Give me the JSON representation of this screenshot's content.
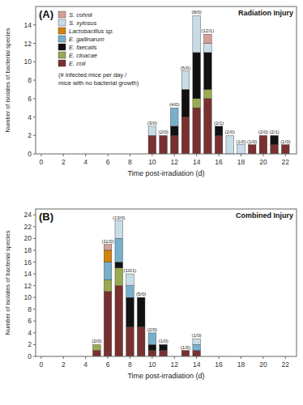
{
  "chart_data": [
    {
      "type": "bar",
      "stacked": true,
      "grid": false,
      "legend": "upper left",
      "panel_label": "(A)",
      "title": "Radiation Injury",
      "x_label": "Time post-irradiation (d)",
      "y_label": "Number of isolates of bacterial species",
      "xlim": [
        -0.5,
        23
      ],
      "xticks": [
        0,
        2,
        4,
        6,
        8,
        10,
        12,
        14,
        16,
        18,
        20,
        22
      ],
      "ylim": [
        0,
        16
      ],
      "yticks": [
        0,
        2,
        4,
        6,
        8,
        10,
        12,
        14
      ],
      "x": [
        10,
        11,
        12,
        13,
        14,
        15,
        16,
        17,
        18,
        19,
        20,
        21,
        22
      ],
      "bar_labels": [
        "(3/0)",
        "(2/0)",
        "(4/0)",
        "(5/0)",
        "(8/0)",
        "(12/1)",
        "(2/1)",
        "(2/0)",
        "(1/0)",
        "(1/0)",
        "(2/0)",
        "(2/1)",
        "(1/0)"
      ],
      "series": [
        {
          "name": "E. coli",
          "color": "#7a3030",
          "values": [
            2,
            2,
            2,
            4,
            5,
            6,
            2,
            0,
            0,
            1,
            2,
            1,
            1
          ]
        },
        {
          "name": "E. cloacae",
          "color": "#9aaa50",
          "values": [
            0,
            0,
            0,
            0,
            1,
            1,
            0,
            0,
            0,
            0,
            0,
            0,
            0
          ]
        },
        {
          "name": "E. faecalis",
          "color": "#111111",
          "values": [
            0,
            0,
            1,
            3,
            5,
            4,
            1,
            0,
            0,
            0,
            0,
            1,
            0
          ]
        },
        {
          "name": "E. gallinarum",
          "color": "#78b0cc",
          "values": [
            0,
            0,
            2,
            0,
            0,
            0,
            0,
            0,
            0,
            0,
            0,
            0,
            0
          ]
        },
        {
          "name": "Lactobacillus sp.",
          "color": "#d4820a",
          "values": [
            0,
            0,
            0,
            0,
            0,
            0,
            0,
            0,
            0,
            0,
            0,
            0,
            0
          ]
        },
        {
          "name": "S. xylosus",
          "color": "#c8dce8",
          "values": [
            1,
            0,
            0,
            2,
            4,
            1,
            0,
            2,
            1,
            0,
            0,
            0,
            0
          ]
        },
        {
          "name": "S. cohnii",
          "color": "#d4a098",
          "values": [
            0,
            0,
            0,
            0,
            0,
            1,
            0,
            0,
            0,
            0,
            0,
            0,
            0
          ]
        }
      ],
      "annotation": "(# infected mice per day /\nmice with no bacterial growth)"
    },
    {
      "type": "bar",
      "stacked": true,
      "grid": false,
      "panel_label": "(B)",
      "title": "Combined Injury",
      "x_label": "Time post-irradiation (d)",
      "y_label": "Number of isolates of bacterial species",
      "xlim": [
        -0.5,
        23
      ],
      "xticks": [
        0,
        2,
        4,
        6,
        8,
        10,
        12,
        14,
        16,
        18,
        20,
        22
      ],
      "ylim": [
        0,
        25
      ],
      "yticks": [
        0,
        2,
        4,
        6,
        8,
        10,
        12,
        14,
        16,
        18,
        20,
        22,
        24
      ],
      "x": [
        5,
        6,
        7,
        8,
        9,
        10,
        11,
        13,
        14
      ],
      "bar_labels": [
        "(2/0)",
        "(11/0)",
        "(13/0)",
        "(10/1)",
        "(5/0)",
        "(2/0)",
        "(1/0)",
        "(1/0)",
        "(1/0)"
      ],
      "series": [
        {
          "color": "#7a3030",
          "values": [
            1,
            11,
            12,
            5,
            5,
            1,
            1,
            1,
            1
          ]
        },
        {
          "color": "#9aaa50",
          "values": [
            1,
            2,
            3,
            0,
            0,
            0,
            0,
            0,
            0
          ]
        },
        {
          "color": "#111111",
          "values": [
            0,
            0,
            1,
            5,
            5,
            1,
            1,
            0,
            0
          ]
        },
        {
          "color": "#78b0cc",
          "values": [
            0,
            3,
            4,
            2,
            0,
            2,
            0,
            0,
            1
          ]
        },
        {
          "color": "#d4820a",
          "values": [
            0,
            2,
            0,
            0,
            0,
            0,
            0,
            0,
            0
          ]
        },
        {
          "color": "#c8dce8",
          "values": [
            0,
            0,
            3,
            2,
            0,
            0,
            0,
            0,
            1
          ]
        },
        {
          "color": "#d4a098",
          "values": [
            0,
            1,
            0,
            0,
            0,
            0,
            0,
            0,
            0
          ]
        }
      ]
    }
  ]
}
